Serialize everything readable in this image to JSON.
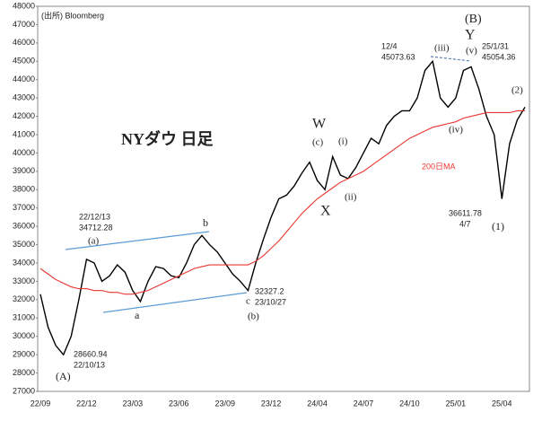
{
  "chart_data": {
    "type": "line",
    "categories": [
      "22/09",
      null,
      null,
      null,
      null,
      null,
      "22/12",
      null,
      null,
      null,
      null,
      null,
      "23/03",
      null,
      null,
      null,
      null,
      null,
      "23/06",
      null,
      null,
      null,
      null,
      null,
      "23/09",
      null,
      null,
      null,
      null,
      null,
      "23/12",
      null,
      null,
      null,
      null,
      null,
      "24/04",
      null,
      null,
      null,
      null,
      null,
      "24/07",
      null,
      null,
      null,
      null,
      null,
      "24/10",
      null,
      null,
      null,
      null,
      null,
      "25/01",
      null,
      null,
      null,
      null,
      null,
      "25/04",
      null,
      null,
      null
    ],
    "series": [
      {
        "name": "NYダウ",
        "color": "#000000",
        "values": [
          32300,
          30500,
          29500,
          29000,
          30000,
          32000,
          34200,
          34000,
          33000,
          33300,
          33900,
          33500,
          32500,
          31900,
          33000,
          33800,
          33700,
          33300,
          33200,
          34000,
          35000,
          35500,
          35000,
          34600,
          34000,
          33400,
          33000,
          32500,
          34000,
          35300,
          36500,
          37500,
          37700,
          38200,
          38900,
          39500,
          38500,
          38000,
          39800,
          38800,
          38600,
          39200,
          40000,
          40800,
          40500,
          41500,
          42000,
          42300,
          42300,
          43000,
          44500,
          45000,
          43000,
          42500,
          43000,
          44500,
          44700,
          43500,
          42000,
          41000,
          37500,
          40500,
          41800,
          42500
        ]
      },
      {
        "name": "200日MA",
        "color": "#e8362f",
        "values": [
          33700,
          33400,
          33100,
          32900,
          32700,
          32600,
          32600,
          32500,
          32500,
          32400,
          32400,
          32300,
          32300,
          32400,
          32500,
          32700,
          32900,
          33100,
          33300,
          33500,
          33700,
          33800,
          33900,
          33900,
          33900,
          33900,
          33900,
          33900,
          34100,
          34400,
          34800,
          35200,
          35700,
          36200,
          36700,
          37100,
          37500,
          37800,
          38100,
          38400,
          38600,
          38800,
          39000,
          39300,
          39600,
          39900,
          40200,
          40500,
          40800,
          41000,
          41200,
          41400,
          41500,
          41600,
          41700,
          41900,
          42000,
          42100,
          42200,
          42200,
          42200,
          42200,
          42300,
          42300
        ]
      }
    ],
    "ylim": [
      27000,
      48000
    ],
    "yticks": [
      27000,
      28000,
      29000,
      30000,
      31000,
      32000,
      33000,
      34000,
      35000,
      36000,
      37000,
      38000,
      39000,
      40000,
      41000,
      42000,
      43000,
      44000,
      45000,
      46000,
      47000,
      48000
    ],
    "source": "(出所) Bloomberg",
    "title": "NYダウ 日足",
    "annotations": [
      "200日MA",
      "(A)",
      "28660.94",
      "22/10/13",
      "22/12/13",
      "34712.28",
      "(a)",
      "a",
      "b",
      "c",
      "32327.2",
      "23/10/27",
      "(b)",
      "W",
      "(c)",
      "X",
      "(i)",
      "(ii)",
      "12/4",
      "45073.63",
      "(iii)",
      "(B)",
      "Y",
      "(v)",
      "25/1/31",
      "45054.36",
      "(iv)",
      "36611.78",
      "4/7",
      "(1)",
      "(2)"
    ]
  }
}
